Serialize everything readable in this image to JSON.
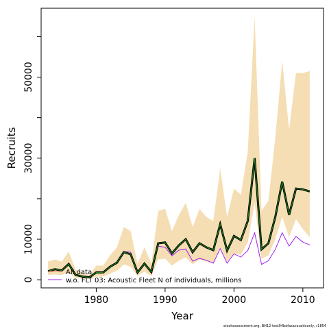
{
  "chart_data": {
    "type": "line",
    "xlabel": "Year",
    "ylabel": "Recruits",
    "xlim": [
      1972,
      2013
    ],
    "ylim": [
      -2000,
      67000
    ],
    "x_ticks": [
      1980,
      1990,
      2000,
      2010
    ],
    "y_ticks": [
      0,
      10000,
      20000,
      30000,
      40000,
      50000,
      60000
    ],
    "y_tick_labels": [
      "0",
      "10000",
      "",
      "30000",
      "",
      "50000",
      ""
    ],
    "grid": false,
    "legend_position": "bottom-left",
    "footnote": "stockassessment.org, BH12-test04befasacousticonly, r1854",
    "colors": {
      "band": "#f5deb3",
      "all_data": "#fa8072",
      "wo_flt03": "#a020f0",
      "center": "#000000",
      "center_inner": "#228b22"
    },
    "x": [
      1973,
      1974,
      1975,
      1976,
      1977,
      1978,
      1979,
      1980,
      1981,
      1982,
      1983,
      1984,
      1985,
      1986,
      1987,
      1988,
      1989,
      1990,
      1991,
      1992,
      1993,
      1994,
      1995,
      1996,
      1997,
      1998,
      1999,
      2000,
      2001,
      2002,
      2003,
      2004,
      2005,
      2006,
      2007,
      2008,
      2009,
      2010,
      2011
    ],
    "band_upper": [
      4500,
      5000,
      4500,
      7000,
      2500,
      1700,
      1200,
      3500,
      3500,
      6000,
      8000,
      13000,
      12000,
      4000,
      8000,
      4000,
      17000,
      17500,
      12000,
      16000,
      19000,
      13000,
      17500,
      15500,
      14500,
      27500,
      15500,
      22500,
      21000,
      31500,
      65000,
      17000,
      19500,
      35000,
      54000,
      37000,
      51000,
      51000,
      51500
    ],
    "band_lower": [
      1200,
      1300,
      1200,
      1800,
      400,
      300,
      200,
      800,
      800,
      1500,
      2200,
      3800,
      3200,
      900,
      2000,
      900,
      5000,
      5200,
      3500,
      4700,
      5500,
      3800,
      5000,
      4500,
      4200,
      8000,
      4500,
      6500,
      6200,
      9200,
      19000,
      5200,
      6000,
      10000,
      15500,
      10500,
      15000,
      12500,
      10500
    ],
    "series": [
      {
        "name": "All data",
        "values": [
          2100,
          2600,
          2300,
          3900,
          1200,
          800,
          600,
          1800,
          1800,
          3200,
          4200,
          6800,
          6300,
          1800,
          4000,
          1900,
          9000,
          9200,
          6500,
          8500,
          10000,
          6800,
          9000,
          8000,
          7300,
          13700,
          7200,
          10800,
          9800,
          14500,
          30000,
          7500,
          9000,
          15500,
          24200,
          16000,
          22500,
          22300,
          21800
        ]
      },
      {
        "name": "w.o. FLT 03: Acoustic Fleet  N of individuals, millions",
        "values": [
          2100,
          2600,
          2300,
          3900,
          1200,
          800,
          600,
          1800,
          1800,
          3200,
          4200,
          7000,
          6800,
          1900,
          4000,
          1900,
          8300,
          8000,
          5900,
          7300,
          7600,
          4600,
          5300,
          4800,
          4100,
          7700,
          4100,
          6400,
          5600,
          7200,
          11600,
          3800,
          4700,
          7500,
          11600,
          8300,
          10700,
          9300,
          8600
        ]
      }
    ]
  }
}
